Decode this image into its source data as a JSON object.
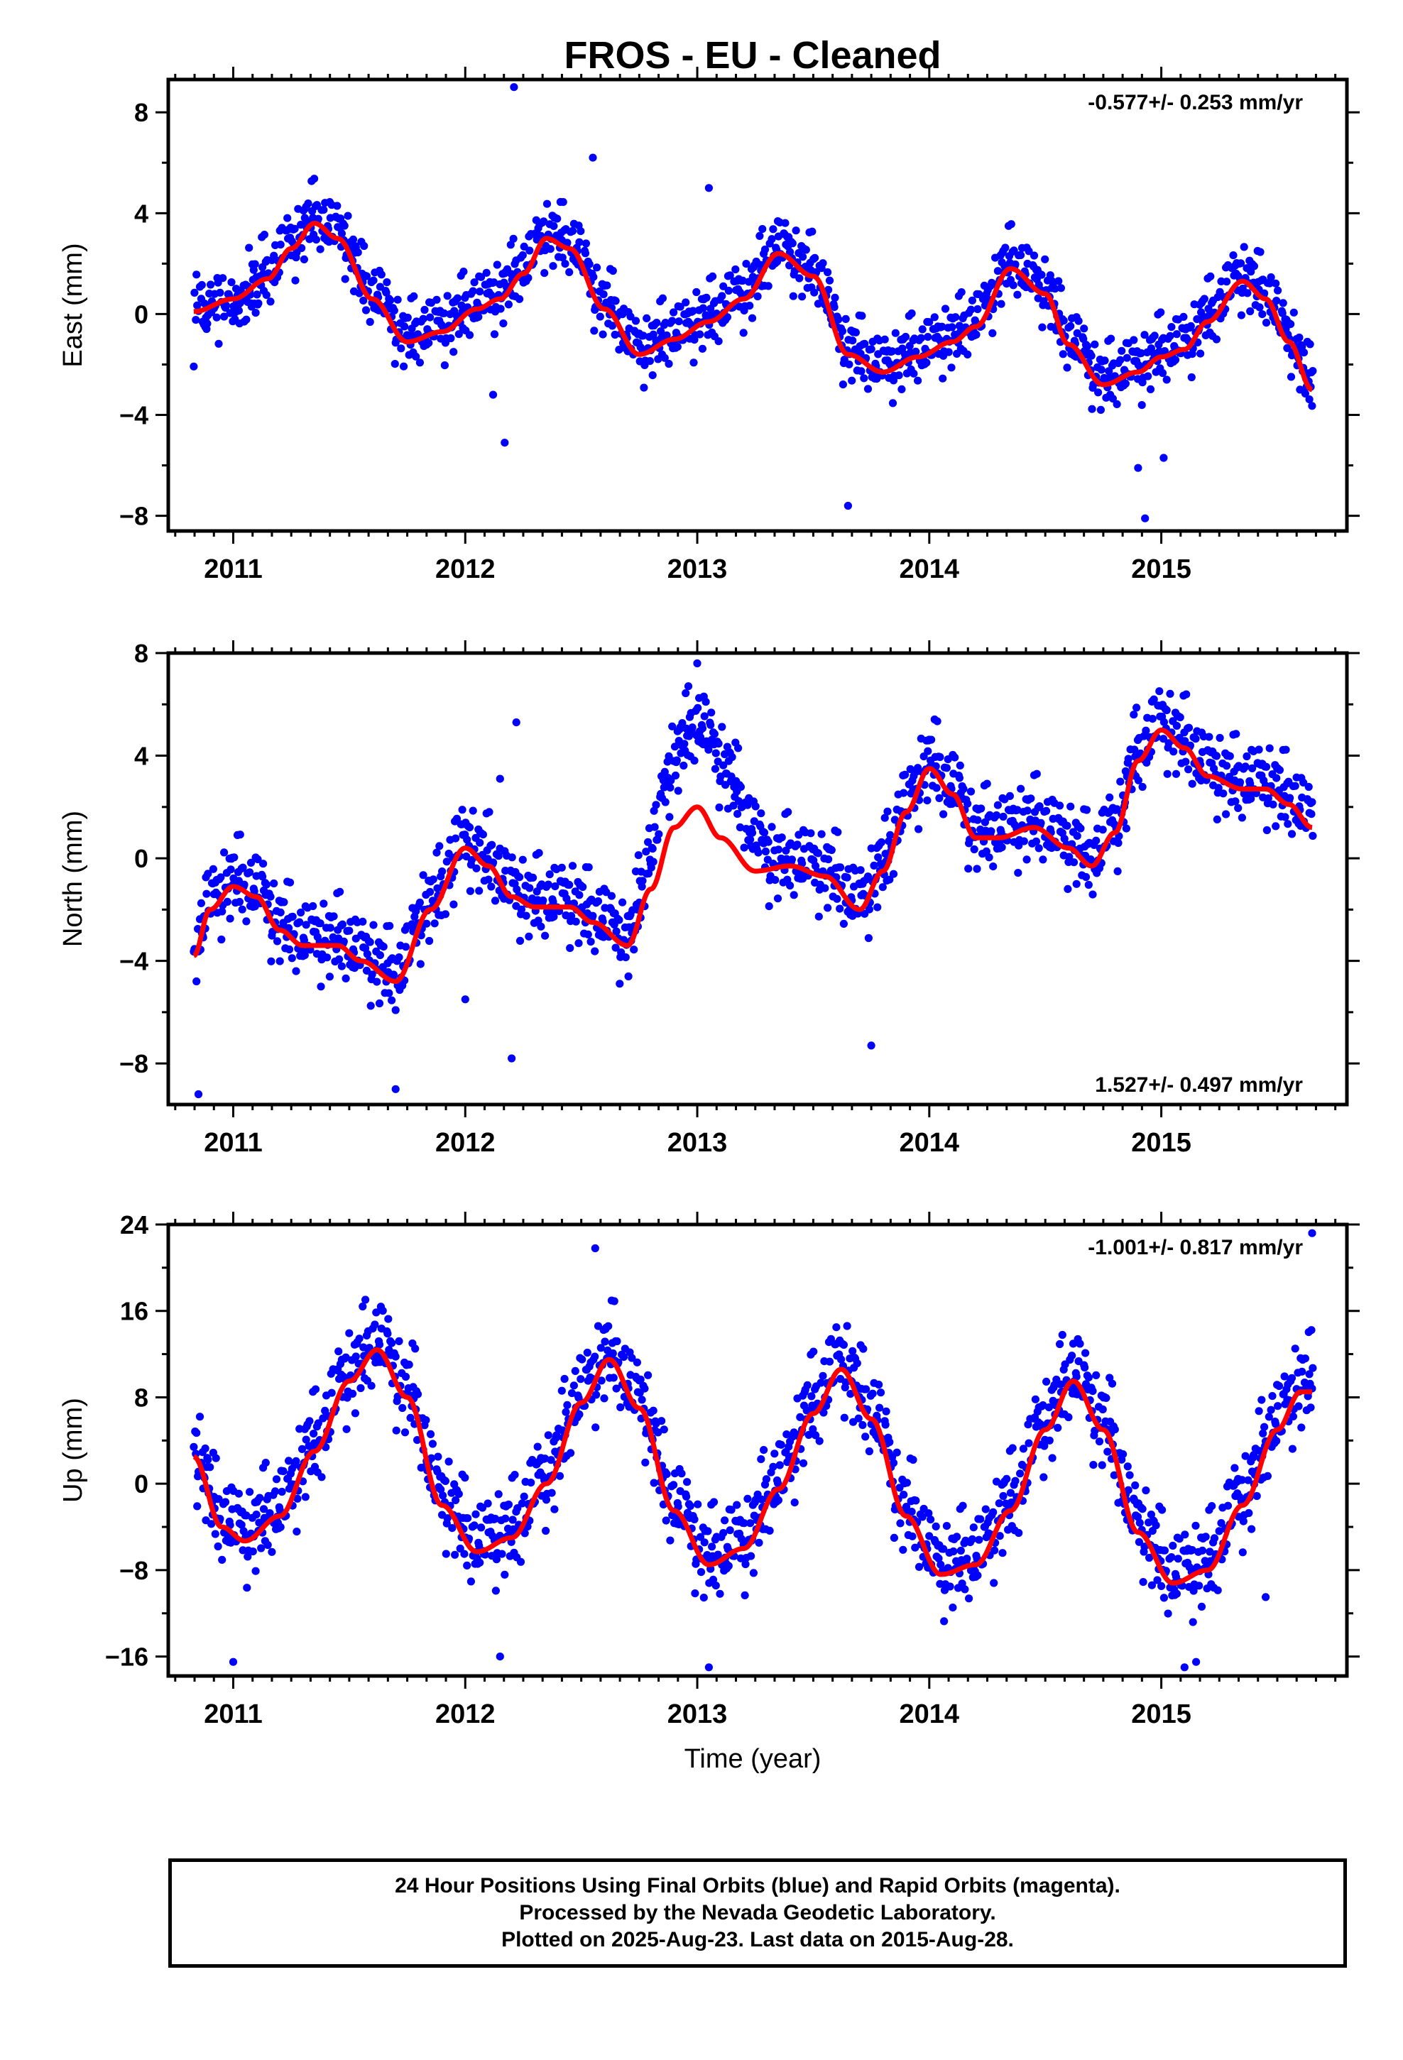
{
  "title": "FROS  - EU - Cleaned",
  "x_axis_label": "Time (year)",
  "colors": {
    "points": "#0000ff",
    "fit": "#ff0000",
    "frame": "#000000"
  },
  "footer": {
    "line1": "24 Hour Positions Using Final Orbits (blue) and Rapid Orbits (magenta).",
    "line2": "Processed by the Nevada Geodetic Laboratory.",
    "line3": "Plotted on 2025-Aug-23. Last data on 2015-Aug-28."
  },
  "chart_data": [
    {
      "type": "scatter",
      "panel": "east",
      "ylabel": "East (mm)",
      "xlim": [
        2010.72,
        2015.8
      ],
      "ylim": [
        -8.6,
        9.3
      ],
      "x_ticks": [
        2011,
        2012,
        2013,
        2014,
        2015
      ],
      "y_ticks": [
        -8,
        -4,
        0,
        4,
        8
      ],
      "y_tick_labels": [
        "−8",
        "−4",
        "0",
        "4",
        "8"
      ],
      "rate_label": "-0.577+/- 0.253 mm/yr",
      "rate_placement": "top-right",
      "grid": false,
      "series": [
        {
          "kind": "fit-curve",
          "x": [
            2010.83,
            2011.0,
            2011.15,
            2011.25,
            2011.35,
            2011.45,
            2011.6,
            2011.75,
            2011.9,
            2012.05,
            2012.15,
            2012.25,
            2012.35,
            2012.45,
            2012.6,
            2012.75,
            2012.9,
            2013.05,
            2013.2,
            2013.35,
            2013.5,
            2013.65,
            2013.8,
            2013.95,
            2014.1,
            2014.2,
            2014.35,
            2014.5,
            2014.6,
            2014.75,
            2014.9,
            2015.0,
            2015.1,
            2015.2,
            2015.35,
            2015.45,
            2015.55,
            2015.65
          ],
          "y": [
            0.1,
            0.6,
            1.4,
            2.6,
            3.6,
            3.0,
            0.6,
            -1.1,
            -0.7,
            0.2,
            0.6,
            1.6,
            3.0,
            2.6,
            0.2,
            -1.6,
            -1.0,
            -0.3,
            0.6,
            2.4,
            1.5,
            -1.6,
            -2.3,
            -1.7,
            -1.1,
            -0.5,
            1.8,
            0.8,
            -1.2,
            -2.8,
            -2.3,
            -1.7,
            -1.4,
            -0.3,
            1.3,
            0.6,
            -1.1,
            -3.0
          ]
        },
        {
          "kind": "outliers",
          "x": [
            2012.21,
            2012.17,
            2013.65,
            2014.93,
            2014.9,
            2015.01,
            2012.55,
            2013.05,
            2012.12
          ],
          "y": [
            9.0,
            -5.1,
            -7.6,
            -8.1,
            -6.1,
            -5.7,
            6.2,
            5.0,
            -3.2
          ]
        }
      ]
    },
    {
      "type": "scatter",
      "panel": "north",
      "ylabel": "North (mm)",
      "xlim": [
        2010.72,
        2015.8
      ],
      "ylim": [
        -9.6,
        8.0
      ],
      "x_ticks": [
        2011,
        2012,
        2013,
        2014,
        2015
      ],
      "y_ticks": [
        -8,
        -4,
        0,
        4,
        8
      ],
      "y_tick_labels": [
        "−8",
        "−4",
        "0",
        "4",
        "8"
      ],
      "rate_label": "1.527+/- 0.497 mm/yr",
      "rate_placement": "bottom-right",
      "grid": false,
      "series": [
        {
          "kind": "fit-curve",
          "x": [
            2010.83,
            2010.9,
            2011.0,
            2011.1,
            2011.2,
            2011.3,
            2011.45,
            2011.55,
            2011.7,
            2011.85,
            2012.0,
            2012.1,
            2012.2,
            2012.3,
            2012.45,
            2012.55,
            2012.7,
            2012.8,
            2012.9,
            2013.0,
            2013.1,
            2013.25,
            2013.4,
            2013.55,
            2013.7,
            2013.8,
            2013.9,
            2014.0,
            2014.1,
            2014.2,
            2014.3,
            2014.45,
            2014.6,
            2014.7,
            2014.8,
            2014.9,
            2015.0,
            2015.1,
            2015.2,
            2015.35,
            2015.45,
            2015.55,
            2015.65
          ],
          "y": [
            -3.8,
            -2.0,
            -1.1,
            -1.5,
            -2.8,
            -3.4,
            -3.4,
            -4.0,
            -4.8,
            -2.0,
            0.4,
            -0.3,
            -1.5,
            -1.9,
            -1.9,
            -2.5,
            -3.4,
            -1.2,
            1.2,
            2.0,
            0.8,
            -0.5,
            -0.3,
            -0.7,
            -2.0,
            -0.5,
            1.8,
            3.5,
            2.5,
            0.8,
            0.8,
            1.2,
            0.4,
            -0.3,
            1.0,
            3.8,
            5.0,
            4.3,
            3.2,
            2.7,
            2.7,
            2.1,
            1.2
          ]
        },
        {
          "kind": "outliers",
          "x": [
            2012.22,
            2012.2,
            2010.85,
            2011.7,
            2013.75,
            2012.15,
            2012.0,
            2011.95,
            2013.0
          ],
          "y": [
            5.3,
            -7.8,
            -9.2,
            -9.0,
            -7.3,
            3.1,
            -5.5,
            -1.8,
            7.6
          ]
        }
      ]
    },
    {
      "type": "scatter",
      "panel": "up",
      "ylabel": "Up (mm)",
      "xlim": [
        2010.72,
        2015.8
      ],
      "ylim": [
        -17.8,
        24.0
      ],
      "x_ticks": [
        2011,
        2012,
        2013,
        2014,
        2015
      ],
      "y_ticks": [
        -16,
        -8,
        0,
        8,
        16,
        24
      ],
      "y_tick_labels": [
        "−16",
        "−8",
        "0",
        "8",
        "16",
        "24"
      ],
      "rate_label": "-1.001+/- 0.817 mm/yr",
      "rate_placement": "top-right",
      "grid": false,
      "series": [
        {
          "kind": "fit-curve",
          "x": [
            2010.83,
            2010.95,
            2011.05,
            2011.2,
            2011.35,
            2011.5,
            2011.62,
            2011.75,
            2011.9,
            2012.05,
            2012.2,
            2012.35,
            2012.5,
            2012.62,
            2012.75,
            2012.9,
            2013.05,
            2013.2,
            2013.35,
            2013.5,
            2013.62,
            2013.75,
            2013.9,
            2014.05,
            2014.2,
            2014.35,
            2014.5,
            2014.62,
            2014.75,
            2014.9,
            2015.05,
            2015.2,
            2015.35,
            2015.5,
            2015.6,
            2015.65
          ],
          "y": [
            2.5,
            -4.0,
            -5.3,
            -3.0,
            3.0,
            9.5,
            12.4,
            8.0,
            -2.0,
            -6.3,
            -5.0,
            0.0,
            7.5,
            11.5,
            7.0,
            -2.5,
            -7.5,
            -6.0,
            -0.5,
            6.5,
            10.6,
            6.0,
            -3.0,
            -8.4,
            -7.5,
            -2.5,
            5.0,
            9.5,
            5.0,
            -4.5,
            -9.2,
            -8.0,
            -2.0,
            5.0,
            8.5,
            8.5
          ]
        },
        {
          "kind": "outliers",
          "x": [
            2012.56,
            2011.0,
            2015.65,
            2012.15,
            2013.05,
            2015.1,
            2015.15,
            2015.45
          ],
          "y": [
            21.8,
            -16.5,
            23.2,
            -16.0,
            -17.0,
            -17.0,
            -16.5,
            -10.5
          ]
        }
      ]
    }
  ]
}
